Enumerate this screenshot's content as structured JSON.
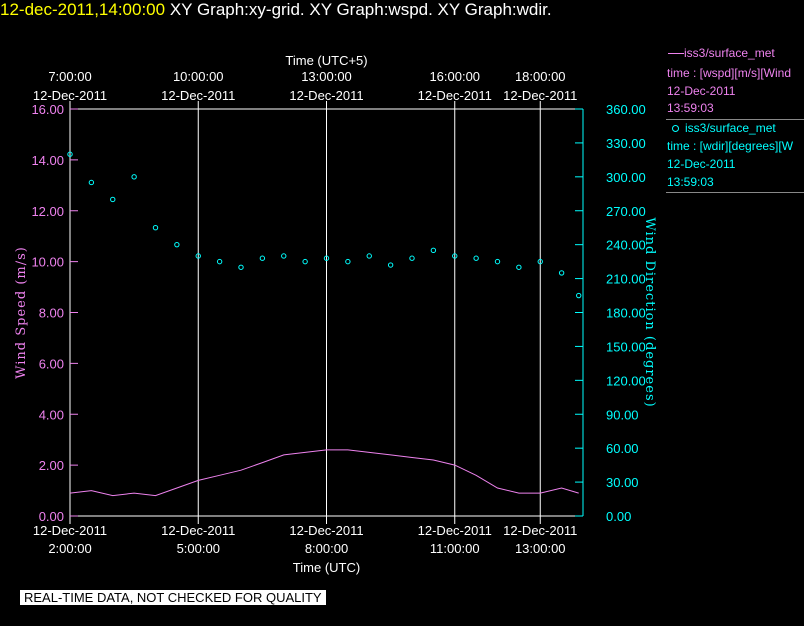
{
  "header": {
    "timestamp": "12-dec-2011,14:00:00",
    "graph_title": "XY Graph:xy-grid.  XY Graph:wspd.  XY Graph:wdir."
  },
  "legend": {
    "speed": {
      "name": "iss3/surface_met",
      "desc": "time : [wspd][m/s][Wind",
      "date": "12-Dec-2011",
      "time": "13:59:03",
      "color": "#ee82ee"
    },
    "direction": {
      "name": "iss3/surface_met",
      "desc": "time : [wdir][degrees][W",
      "date": "12-Dec-2011",
      "time": "13:59:03",
      "color": "#00ffff"
    }
  },
  "disclaimer": "REAL-TIME DATA, NOT CHECKED FOR QUALITY",
  "chart_data": {
    "type": "line",
    "top_axis": {
      "title": "Time (UTC+5)",
      "ticks": [
        {
          "time": "7:00:00",
          "date": "12-Dec-2011"
        },
        {
          "time": "10:00:00",
          "date": "12-Dec-2011"
        },
        {
          "time": "13:00:00",
          "date": "12-Dec-2011"
        },
        {
          "time": "16:00:00",
          "date": "12-Dec-2011"
        },
        {
          "time": "18:00:00",
          "date": "12-Dec-2011"
        }
      ]
    },
    "bottom_axis": {
      "title": "Time (UTC)",
      "range": [
        "2011-12-12 02:00:00",
        "2011-12-12 14:00:00"
      ],
      "ticks": [
        {
          "time": "2:00:00",
          "date": "12-Dec-2011",
          "hour": 2
        },
        {
          "time": "5:00:00",
          "date": "12-Dec-2011",
          "hour": 5
        },
        {
          "time": "8:00:00",
          "date": "12-Dec-2011",
          "hour": 8
        },
        {
          "time": "11:00:00",
          "date": "12-Dec-2011",
          "hour": 11
        },
        {
          "time": "13:00:00",
          "date": "12-Dec-2011",
          "hour": 13
        }
      ]
    },
    "left_axis": {
      "title": "Wind Speed (m/s)",
      "range": [
        0,
        16
      ],
      "ticks": [
        "0.00",
        "2.00",
        "4.00",
        "6.00",
        "8.00",
        "10.00",
        "12.00",
        "14.00",
        "16.00"
      ]
    },
    "right_axis": {
      "title": "Wind Direction (degrees)",
      "range": [
        0,
        360
      ],
      "ticks": [
        "0.00",
        "30.00",
        "60.00",
        "90.00",
        "120.00",
        "150.00",
        "180.00",
        "210.00",
        "240.00",
        "270.00",
        "300.00",
        "330.00",
        "360.00"
      ]
    },
    "grid": "vertical at bottom-axis ticks",
    "series": [
      {
        "name": "wspd",
        "axis": "left",
        "style": "line",
        "color": "#ee82ee",
        "hours": [
          2.0,
          2.5,
          3.0,
          3.5,
          4.0,
          4.5,
          5.0,
          5.5,
          6.0,
          6.5,
          7.0,
          7.5,
          8.0,
          8.5,
          9.0,
          9.5,
          10.0,
          10.5,
          11.0,
          11.5,
          12.0,
          12.5,
          13.0,
          13.5,
          13.9
        ],
        "values": [
          0.9,
          1.0,
          0.8,
          0.9,
          0.8,
          1.1,
          1.4,
          1.6,
          1.8,
          2.1,
          2.4,
          2.5,
          2.6,
          2.6,
          2.5,
          2.4,
          2.3,
          2.2,
          2.0,
          1.6,
          1.1,
          0.9,
          0.9,
          1.1,
          0.9
        ]
      },
      {
        "name": "wdir",
        "axis": "right",
        "style": "points",
        "color": "#00ffff",
        "hours": [
          2.0,
          2.5,
          3.0,
          3.5,
          4.0,
          4.5,
          5.0,
          5.5,
          6.0,
          6.5,
          7.0,
          7.5,
          8.0,
          8.5,
          9.0,
          9.5,
          10.0,
          10.5,
          11.0,
          11.5,
          12.0,
          12.5,
          13.0,
          13.5,
          13.9
        ],
        "values": [
          320,
          295,
          280,
          300,
          255,
          240,
          230,
          225,
          220,
          228,
          230,
          225,
          228,
          225,
          230,
          222,
          228,
          235,
          230,
          228,
          225,
          220,
          225,
          215,
          195
        ]
      }
    ]
  }
}
